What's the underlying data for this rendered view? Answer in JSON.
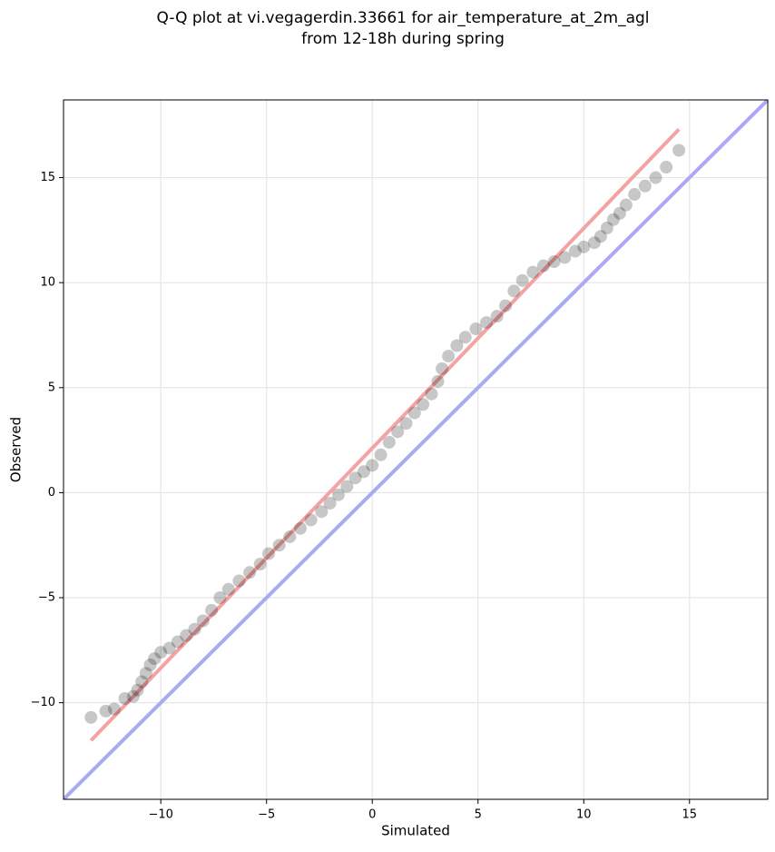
{
  "chart_data": {
    "type": "scatter",
    "title": [
      "Q-Q plot at vi.vegagerdin.33661 for air_temperature_at_2m_agl",
      "from 12-18h during spring"
    ],
    "x_label": "Simulated",
    "y_label": "Observed",
    "xlim": [
      -14.6,
      18.7
    ],
    "ylim": [
      -14.6,
      18.7
    ],
    "xticks": [
      {
        "value": -10,
        "label": "−10"
      },
      {
        "value": -5,
        "label": "−5"
      },
      0,
      5,
      10,
      15
    ],
    "yticks": [
      {
        "value": -10,
        "label": "−10"
      },
      {
        "value": -5,
        "label": "−5"
      },
      0,
      5,
      10,
      15
    ],
    "grid": true,
    "series": [
      {
        "color": "#000000",
        "x": [
          -13.3,
          -12.6,
          -12.2,
          -11.7,
          -11.3,
          -11.1,
          -10.9,
          -10.7,
          -10.5,
          -10.3,
          -10.0,
          -9.6,
          -9.2,
          -8.8,
          -8.4,
          -8.0,
          -7.6,
          -7.2,
          -6.8,
          -6.3,
          -5.8,
          -5.3,
          -4.9,
          -4.4,
          -3.9,
          -3.4,
          -2.9,
          -2.4,
          -2.0,
          -1.6,
          -1.2,
          -0.8,
          -0.4,
          0,
          0.4,
          0.8,
          1.2,
          1.6,
          2.0,
          2.4,
          2.8,
          3.1,
          3.3,
          3.6,
          4.0,
          4.4,
          4.9,
          5.4,
          5.9,
          6.3,
          6.7,
          7.1,
          7.6,
          8.1,
          8.6,
          9.1,
          9.6,
          10.0,
          10.5,
          10.8,
          11.1,
          11.4,
          11.7,
          12.0,
          12.4,
          12.9,
          13.4,
          13.9,
          14.5
        ],
        "y": [
          -10.7,
          -10.4,
          -10.3,
          -9.8,
          -9.7,
          -9.4,
          -9.0,
          -8.6,
          -8.2,
          -7.9,
          -7.6,
          -7.4,
          -7.1,
          -6.8,
          -6.5,
          -6.1,
          -5.6,
          -5.0,
          -4.6,
          -4.2,
          -3.8,
          -3.4,
          -2.9,
          -2.5,
          -2.1,
          -1.7,
          -1.3,
          -0.9,
          -0.5,
          -0.1,
          0.3,
          0.7,
          1.0,
          1.3,
          1.8,
          2.4,
          2.9,
          3.3,
          3.8,
          4.2,
          4.7,
          5.3,
          5.9,
          6.5,
          7.0,
          7.4,
          7.8,
          8.1,
          8.4,
          8.9,
          9.6,
          10.1,
          10.5,
          10.8,
          11.0,
          11.2,
          11.5,
          11.7,
          11.9,
          12.2,
          12.6,
          13.0,
          13.3,
          13.7,
          14.2,
          14.6,
          15.0,
          15.5,
          16.3
        ]
      }
    ],
    "lines": [
      {
        "color": "#f4a3a3",
        "x": [
          -13.3,
          14.5
        ],
        "y": [
          -11.8,
          17.3
        ]
      },
      {
        "color": "#a9a9f5",
        "x": [
          -14.6,
          18.7
        ],
        "y": [
          -14.6,
          18.7
        ]
      }
    ]
  }
}
